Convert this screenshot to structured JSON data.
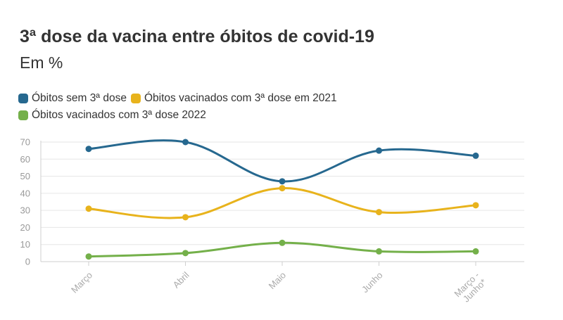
{
  "chart_data": {
    "type": "line",
    "title": "3ª dose da vacina entre óbitos de covid-19",
    "subtitle": "Em %",
    "categories": [
      "Março",
      "Abril",
      "Maio",
      "Junho",
      "Março -\nJunho*"
    ],
    "y_ticks": [
      "0",
      "10",
      "20",
      "30",
      "40",
      "50",
      "60",
      "70"
    ],
    "ylim": [
      0,
      70
    ],
    "grid": true,
    "legend_position": "top-left",
    "series": [
      {
        "name": "Óbitos sem 3ª dose",
        "color": "#26688f",
        "values": [
          66,
          70,
          47,
          65,
          62
        ]
      },
      {
        "name": "Óbitos vacinados com 3ª dose em 2021",
        "color": "#e8b31c",
        "values": [
          31,
          26,
          43,
          29,
          33
        ]
      },
      {
        "name": "Óbitos vacinados com 3ª dose 2022",
        "color": "#74b04a",
        "values": [
          3,
          5,
          11,
          6,
          6
        ]
      }
    ]
  }
}
